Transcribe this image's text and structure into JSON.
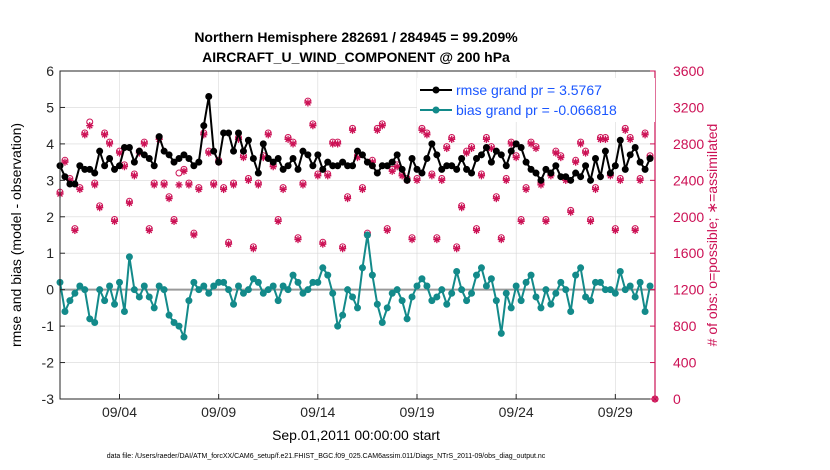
{
  "figure": {
    "title_line1": "Northern Hemisphere 282691 / 284945 = 99.209%",
    "title_line2": "AIRCRAFT_U_WIND_COMPONENT @ 200 hPa",
    "footnote": "data file: /Users/raeder/DAI/ATM_forcXX/CAM6_setup/f.e21.FHIST_BGC.f09_025.CAM6assim.011/Diags_NTrS_2011-09/obs_diag_output.nc"
  },
  "colors": {
    "rmse": "#000000",
    "bias": "#138a8a",
    "obs": "#cc1155",
    "legend_text": "#1a56ff",
    "zero_line": "#9a9a9a",
    "grid": "#d8d8d8"
  },
  "chart_data": {
    "type": "line",
    "title": "Northern Hemisphere 282691 / 284945 = 99.209%\nAIRCRAFT_U_WIND_COMPONENT @ 200 hPa",
    "xlabel": "Sep.01,2011 00:00:00 start",
    "ylabel_left": "rmse and bias (model - observation)",
    "ylabel_right": "# of obs: o=possible; ∗=assimilated",
    "x_tick_labels": [
      "09/04",
      "09/09",
      "09/14",
      "09/19",
      "09/24",
      "09/29"
    ],
    "x_tick_days": [
      4,
      9,
      14,
      19,
      24,
      29
    ],
    "xlim": [
      1.0,
      31.0
    ],
    "ylim_left": [
      -3,
      6
    ],
    "yticks_left": [
      "-3",
      "-2",
      "-1",
      "0",
      "1",
      "2",
      "3",
      "4",
      "5",
      "6"
    ],
    "ylim_right": [
      0,
      3600
    ],
    "yticks_right": [
      "0",
      "400",
      "800",
      "1200",
      "1600",
      "2000",
      "2400",
      "2800",
      "3200",
      "3600"
    ],
    "grid": true,
    "legend_placement": "top-right",
    "series": [
      {
        "name": "rmse grand pr = 3.5767",
        "axis": "left",
        "x": [
          1.0,
          1.25,
          1.5,
          1.75,
          2.0,
          2.25,
          2.5,
          2.75,
          3.0,
          3.25,
          3.5,
          3.75,
          4.0,
          4.25,
          4.5,
          4.75,
          5.0,
          5.25,
          5.5,
          5.75,
          6.0,
          6.25,
          6.5,
          6.75,
          7.0,
          7.25,
          7.5,
          7.75,
          8.0,
          8.25,
          8.5,
          8.75,
          9.0,
          9.25,
          9.5,
          9.75,
          10.0,
          10.25,
          10.5,
          10.75,
          11.0,
          11.25,
          11.5,
          11.75,
          12.0,
          12.25,
          12.5,
          12.75,
          13.0,
          13.25,
          13.5,
          13.75,
          14.0,
          14.25,
          14.5,
          14.75,
          15.0,
          15.25,
          15.5,
          15.75,
          16.0,
          16.25,
          16.5,
          16.75,
          17.0,
          17.25,
          17.5,
          17.75,
          18.0,
          18.25,
          18.5,
          18.75,
          19.0,
          19.25,
          19.5,
          19.75,
          20.0,
          20.25,
          20.5,
          20.75,
          21.0,
          21.25,
          21.5,
          21.75,
          22.0,
          22.25,
          22.5,
          22.75,
          23.0,
          23.25,
          23.5,
          23.75,
          24.0,
          24.25,
          24.5,
          24.75,
          25.0,
          25.25,
          25.5,
          25.75,
          26.0,
          26.25,
          26.5,
          26.75,
          27.0,
          27.25,
          27.5,
          27.75,
          28.0,
          28.25,
          28.5,
          28.75,
          29.0,
          29.25,
          29.5,
          29.75,
          30.0,
          30.25,
          30.5,
          30.75
        ],
        "values": [
          3.4,
          3.1,
          2.9,
          2.9,
          3.4,
          3.3,
          3.3,
          3.2,
          3.8,
          3.4,
          3.6,
          3.3,
          3.4,
          3.9,
          3.9,
          3.5,
          3.8,
          3.7,
          3.6,
          3.4,
          4.2,
          3.8,
          3.7,
          3.5,
          3.6,
          3.7,
          3.6,
          3.4,
          3.5,
          4.5,
          5.3,
          3.8,
          3.5,
          4.3,
          4.3,
          3.8,
          4.3,
          3.8,
          4.1,
          3.6,
          3.2,
          4.0,
          3.6,
          3.5,
          3.6,
          3.3,
          3.4,
          3.6,
          3.3,
          3.8,
          3.7,
          3.4,
          3.7,
          3.3,
          3.5,
          3.4,
          3.4,
          3.5,
          3.4,
          3.4,
          3.8,
          3.7,
          3.5,
          3.4,
          3.2,
          3.4,
          3.4,
          3.5,
          3.7,
          3.3,
          3.0,
          3.6,
          3.3,
          3.2,
          3.6,
          4.0,
          3.7,
          3.3,
          3.4,
          3.4,
          3.3,
          3.6,
          3.3,
          3.2,
          3.6,
          3.7,
          3.9,
          3.5,
          3.8,
          3.7,
          3.4,
          3.8,
          4.0,
          3.9,
          3.5,
          3.3,
          3.2,
          3.0,
          3.3,
          3.2,
          3.4,
          3.1,
          3.1,
          3.0,
          3.2,
          3.1,
          3.4,
          3.0,
          3.6,
          3.1,
          3.8,
          3.2,
          3.4,
          4.1,
          3.3,
          3.7,
          3.9,
          3.5,
          3.3,
          3.6
        ]
      },
      {
        "name": "bias grand pr = -0.066818",
        "axis": "left",
        "x": [
          1.0,
          1.25,
          1.5,
          1.75,
          2.0,
          2.25,
          2.5,
          2.75,
          3.0,
          3.25,
          3.5,
          3.75,
          4.0,
          4.25,
          4.5,
          4.75,
          5.0,
          5.25,
          5.5,
          5.75,
          6.0,
          6.25,
          6.5,
          6.75,
          7.0,
          7.25,
          7.5,
          7.75,
          8.0,
          8.25,
          8.5,
          8.75,
          9.0,
          9.25,
          9.5,
          9.75,
          10.0,
          10.25,
          10.5,
          10.75,
          11.0,
          11.25,
          11.5,
          11.75,
          12.0,
          12.25,
          12.5,
          12.75,
          13.0,
          13.25,
          13.5,
          13.75,
          14.0,
          14.25,
          14.5,
          14.75,
          15.0,
          15.25,
          15.5,
          15.75,
          16.0,
          16.25,
          16.5,
          16.75,
          17.0,
          17.25,
          17.5,
          17.75,
          18.0,
          18.25,
          18.5,
          18.75,
          19.0,
          19.25,
          19.5,
          19.75,
          20.0,
          20.25,
          20.5,
          20.75,
          21.0,
          21.25,
          21.5,
          21.75,
          22.0,
          22.25,
          22.5,
          22.75,
          23.0,
          23.25,
          23.5,
          23.75,
          24.0,
          24.25,
          24.5,
          24.75,
          25.0,
          25.25,
          25.5,
          25.75,
          26.0,
          26.25,
          26.5,
          26.75,
          27.0,
          27.25,
          27.5,
          27.75,
          28.0,
          28.25,
          28.5,
          28.75,
          29.0,
          29.25,
          29.5,
          29.75,
          30.0,
          30.25,
          30.5,
          30.75
        ],
        "values": [
          0.2,
          -0.6,
          -0.3,
          -0.1,
          0.1,
          0.0,
          -0.8,
          -0.9,
          0.0,
          -0.3,
          0.1,
          -0.4,
          0.2,
          -0.6,
          0.9,
          0.0,
          -0.2,
          0.1,
          -0.2,
          -0.5,
          0.1,
          0.0,
          -0.7,
          -0.9,
          -1.0,
          -1.3,
          -0.3,
          0.2,
          0.0,
          0.1,
          -0.1,
          0.1,
          0.2,
          0.2,
          0.0,
          -0.4,
          0.1,
          -0.1,
          0.0,
          0.3,
          0.2,
          -0.1,
          0.0,
          0.1,
          -0.3,
          0.1,
          0.0,
          0.4,
          0.2,
          -0.1,
          0.0,
          0.2,
          0.2,
          0.6,
          0.4,
          -0.1,
          -1.0,
          -0.7,
          0.0,
          -0.2,
          -0.5,
          0.6,
          1.5,
          0.4,
          -0.4,
          -0.9,
          -0.5,
          -0.1,
          0.0,
          -0.3,
          -0.8,
          -0.2,
          0.1,
          0.3,
          0.1,
          -0.3,
          -0.2,
          0.0,
          -0.4,
          -0.1,
          0.5,
          0.0,
          -0.3,
          -0.1,
          0.4,
          0.6,
          0.1,
          0.3,
          -0.3,
          -1.2,
          -0.1,
          -0.5,
          0.1,
          -0.3,
          0.2,
          0.4,
          -0.2,
          -0.5,
          0.0,
          -0.4,
          -0.1,
          0.2,
          0.0,
          -0.6,
          0.4,
          0.6,
          -0.2,
          -0.3,
          0.2,
          0.2,
          0.0,
          0.0,
          -0.1,
          0.5,
          0.0,
          0.1,
          -0.2,
          0.2,
          -0.6,
          0.1
        ]
      },
      {
        "name": "obs assimilated",
        "axis": "right",
        "marker": "asterisk",
        "x": [
          1.0,
          1.25,
          1.5,
          1.75,
          2.0,
          2.25,
          2.5,
          2.75,
          3.0,
          3.25,
          3.5,
          3.75,
          4.0,
          4.25,
          4.5,
          4.75,
          5.0,
          5.25,
          5.5,
          5.75,
          6.0,
          6.25,
          6.5,
          6.75,
          7.0,
          7.25,
          7.5,
          7.75,
          8.0,
          8.25,
          8.5,
          8.75,
          9.0,
          9.25,
          9.5,
          9.75,
          10.0,
          10.25,
          10.5,
          10.75,
          11.0,
          11.25,
          11.5,
          11.75,
          12.0,
          12.25,
          12.5,
          12.75,
          13.0,
          13.25,
          13.5,
          13.75,
          14.0,
          14.25,
          14.5,
          14.75,
          15.0,
          15.25,
          15.5,
          15.75,
          16.0,
          16.25,
          16.5,
          16.75,
          17.0,
          17.25,
          17.5,
          17.75,
          18.0,
          18.25,
          18.5,
          18.75,
          19.0,
          19.25,
          19.5,
          19.75,
          20.0,
          20.25,
          20.5,
          20.75,
          21.0,
          21.25,
          21.5,
          21.75,
          22.0,
          22.25,
          22.5,
          22.75,
          23.0,
          23.25,
          23.5,
          23.75,
          24.0,
          24.25,
          24.5,
          24.75,
          25.0,
          25.25,
          25.5,
          25.75,
          26.0,
          26.25,
          26.5,
          26.75,
          27.0,
          27.25,
          27.5,
          27.75,
          28.0,
          28.25,
          28.5,
          28.75,
          29.0,
          29.25,
          29.5,
          29.75,
          30.0,
          30.25,
          30.5,
          30.75,
          31.0
        ],
        "values": [
          2250,
          2600,
          2400,
          1850,
          2300,
          2900,
          3000,
          2350,
          2100,
          2900,
          2800,
          1950,
          2700,
          2550,
          2150,
          2450,
          2700,
          2800,
          1850,
          2350,
          2850,
          2350,
          2200,
          1950,
          2350,
          2500,
          2350,
          1800,
          2300,
          2900,
          2700,
          2350,
          2600,
          2300,
          1700,
          2350,
          2850,
          2650,
          2400,
          1650,
          2350,
          2650,
          2900,
          2550,
          1950,
          2300,
          2850,
          2800,
          1750,
          2350,
          3250,
          3000,
          2450,
          1700,
          2450,
          2800,
          2800,
          1650,
          2200,
          2950,
          2650,
          2300,
          1800,
          2600,
          2950,
          3000,
          1850,
          2500,
          2550,
          2450,
          2400,
          1750,
          2400,
          2950,
          2900,
          2450,
          1750,
          2400,
          2750,
          2850,
          1650,
          2100,
          2700,
          2750,
          1850,
          2450,
          2850,
          2750,
          2200,
          1750,
          2400,
          2800,
          2650,
          1950,
          2300,
          2800,
          2750,
          2350,
          1950,
          2450,
          2700,
          2650,
          2400,
          2050,
          2600,
          2800,
          2700,
          1950,
          2300,
          2850,
          2850,
          2450,
          1850,
          2400,
          2950,
          2850,
          1850,
          2400,
          2900,
          2650,
          0
        ]
      },
      {
        "name": "obs possible",
        "axis": "right",
        "marker": "circle",
        "x": [
          1.0,
          1.25,
          1.5,
          1.75,
          2.0,
          2.25,
          2.5,
          2.75,
          3.0,
          3.25,
          3.5,
          3.75,
          4.0,
          4.25,
          4.5,
          4.75,
          5.0,
          5.25,
          5.5,
          5.75,
          6.0,
          6.25,
          6.5,
          6.75,
          7.0,
          7.25,
          7.5,
          7.75,
          8.0,
          8.25,
          8.5,
          8.75,
          9.0,
          9.25,
          9.5,
          9.75,
          10.0,
          10.25,
          10.5,
          10.75,
          11.0,
          11.25,
          11.5,
          11.75,
          12.0,
          12.25,
          12.5,
          12.75,
          13.0,
          13.25,
          13.5,
          13.75,
          14.0,
          14.25,
          14.5,
          14.75,
          15.0,
          15.25,
          15.5,
          15.75,
          16.0,
          16.25,
          16.5,
          16.75,
          17.0,
          17.25,
          17.5,
          17.75,
          18.0,
          18.25,
          18.5,
          18.75,
          19.0,
          19.25,
          19.5,
          19.75,
          20.0,
          20.25,
          20.5,
          20.75,
          21.0,
          21.25,
          21.5,
          21.75,
          22.0,
          22.25,
          22.5,
          22.75,
          23.0,
          23.25,
          23.5,
          23.75,
          24.0,
          24.25,
          24.5,
          24.75,
          25.0,
          25.25,
          25.5,
          25.75,
          26.0,
          26.25,
          26.5,
          26.75,
          27.0,
          27.25,
          27.5,
          27.75,
          28.0,
          28.25,
          28.5,
          28.75,
          29.0,
          29.25,
          29.5,
          29.75,
          30.0,
          30.25,
          30.5,
          30.75,
          31.0
        ],
        "values": [
          2270,
          2620,
          2420,
          1870,
          2320,
          2920,
          3040,
          2370,
          2120,
          2920,
          2820,
          1970,
          2720,
          2570,
          2170,
          2470,
          2720,
          2820,
          1870,
          2370,
          2870,
          2370,
          2220,
          1970,
          2480,
          2520,
          2370,
          1820,
          2320,
          2920,
          2720,
          2370,
          2620,
          2320,
          1720,
          2370,
          2870,
          2670,
          2420,
          1670,
          2370,
          2670,
          2920,
          2570,
          1970,
          2320,
          2870,
          2820,
          1770,
          2370,
          3270,
          3020,
          2470,
          1720,
          2470,
          2820,
          2820,
          1670,
          2220,
          2970,
          2670,
          2320,
          1820,
          2620,
          2970,
          3020,
          1870,
          2520,
          2570,
          2470,
          2420,
          1770,
          2420,
          2970,
          2920,
          2470,
          1770,
          2420,
          2770,
          2870,
          1670,
          2120,
          2720,
          2770,
          1870,
          2470,
          2870,
          2770,
          2220,
          1770,
          2420,
          2820,
          2670,
          1970,
          2320,
          2820,
          2770,
          2370,
          1970,
          2470,
          2720,
          2670,
          2420,
          2070,
          2620,
          2820,
          2720,
          1970,
          2320,
          2870,
          2870,
          2470,
          1870,
          2420,
          2970,
          2870,
          1870,
          2420,
          2920,
          2670,
          0
        ]
      }
    ]
  }
}
